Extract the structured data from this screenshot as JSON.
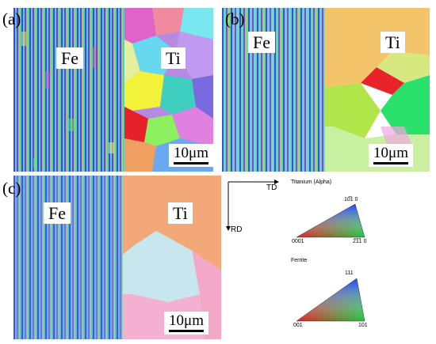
{
  "panels": {
    "a": {
      "label": "(a)",
      "left_tag": "Fe",
      "right_tag": "Ti",
      "scale": "10μm"
    },
    "b": {
      "label": "(b)",
      "left_tag": "Fe",
      "right_tag": "Ti",
      "scale": "10μm"
    },
    "c": {
      "label": "(c)",
      "left_tag": "Fe",
      "right_tag": "Ti",
      "scale": "10μm"
    }
  },
  "axes": {
    "td": "TD",
    "rd": "RD"
  },
  "legend": {
    "titanium": {
      "title": "Titanium (Alpha)",
      "top": "10̅1 0",
      "left": "0001",
      "right": "2̅1̅1 0"
    },
    "ferrite": {
      "title": "Ferrite",
      "top": "111",
      "left": "001",
      "right": "101"
    }
  }
}
